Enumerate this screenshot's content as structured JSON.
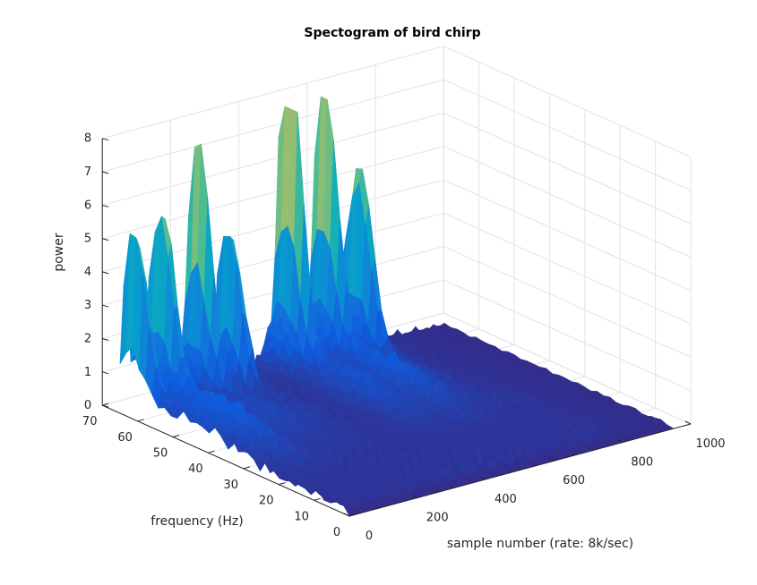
{
  "chart_data": {
    "type": "surface",
    "title": "Spectogram of bird chirp",
    "xlabel": "sample number (rate: 8k/sec)",
    "ylabel": "frequency (Hz)",
    "zlabel": "power",
    "xlim": [
      0,
      1000
    ],
    "ylim": [
      0,
      70
    ],
    "zlim": [
      0,
      8
    ],
    "x_ticks": [
      0,
      200,
      400,
      600,
      800,
      1000
    ],
    "y_ticks": [
      0,
      10,
      20,
      30,
      40,
      50,
      60,
      70
    ],
    "z_ticks": [
      0,
      1,
      2,
      3,
      4,
      5,
      6,
      7,
      8
    ],
    "grid": true,
    "colormap": "parula",
    "peaks": [
      {
        "x": 15,
        "y": 62,
        "z": 4.6
      },
      {
        "x": 90,
        "y": 62,
        "z": 5.0
      },
      {
        "x": 200,
        "y": 62,
        "z": 5.8
      },
      {
        "x": 290,
        "y": 62,
        "z": 4.3
      },
      {
        "x": 465,
        "y": 62,
        "z": 7.7
      },
      {
        "x": 570,
        "y": 62,
        "z": 6.3
      },
      {
        "x": 650,
        "y": 60,
        "z": 5.0
      }
    ]
  },
  "colors": {
    "background": "#ffffff",
    "grid": "#e3e3e3",
    "axis": "#262626",
    "low": "#352a87",
    "mid": "#0fa5d6",
    "high": "#e5c744"
  }
}
